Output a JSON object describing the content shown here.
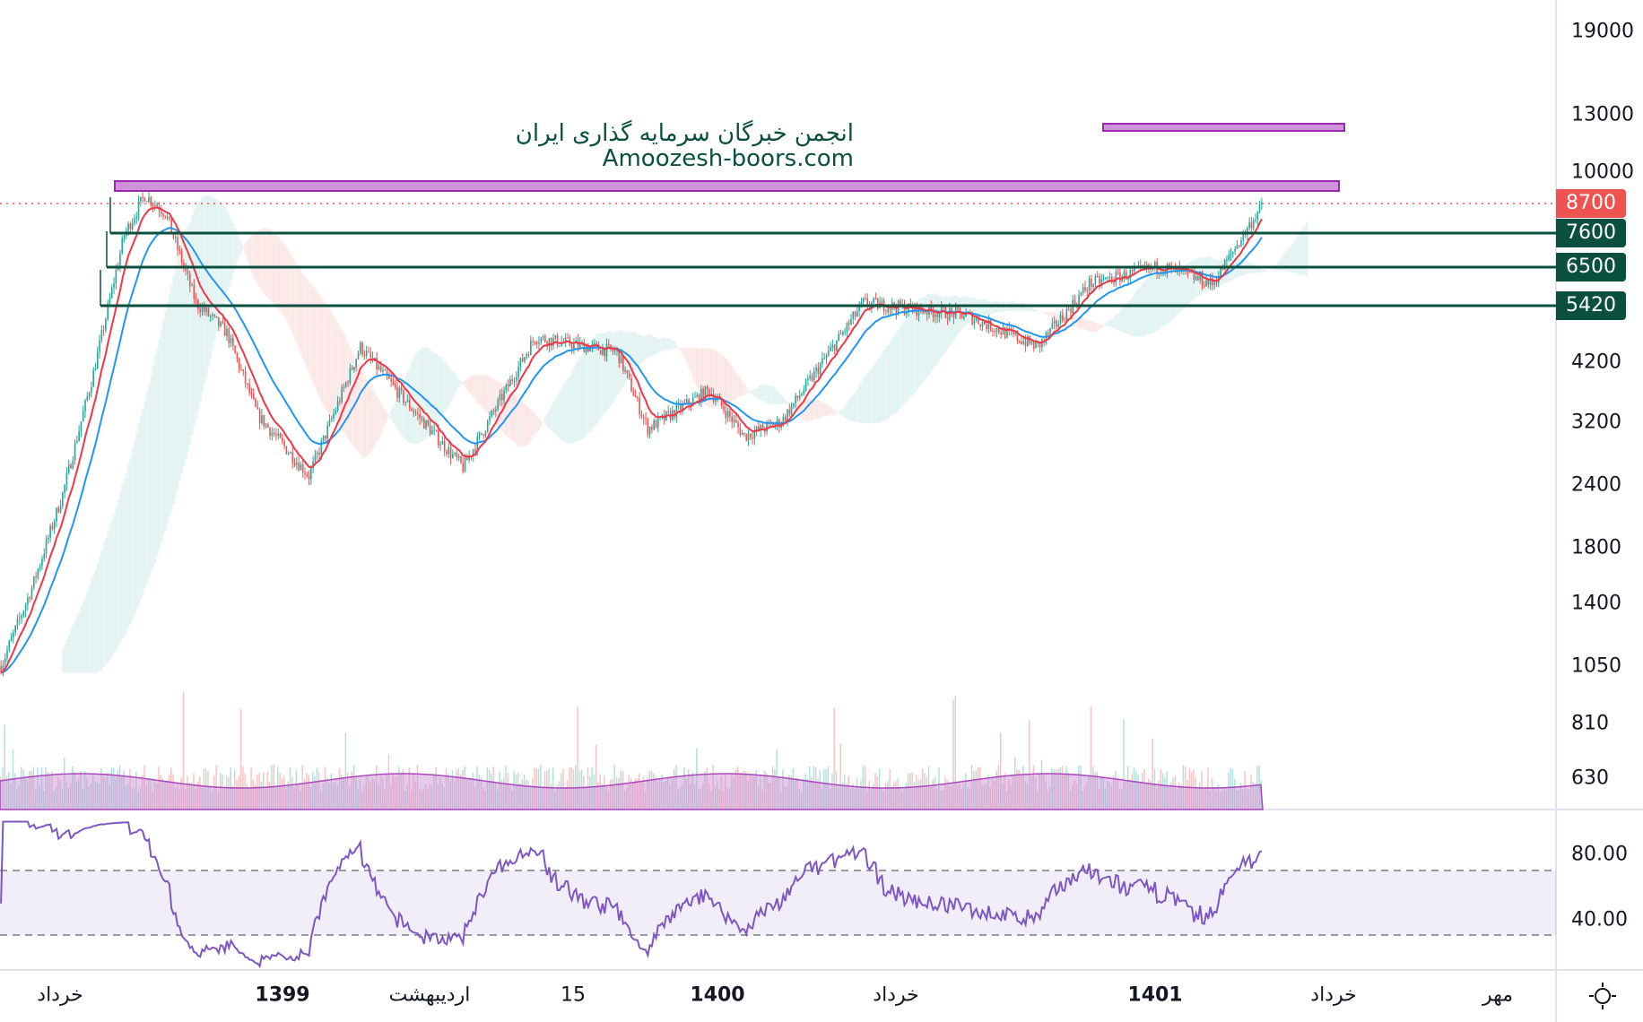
{
  "watermark": {
    "line1": "انجمن خبرگان سرمایه گذاری ایران",
    "line2": "Amoozesh-boors.com"
  },
  "price_axis": [
    "19000",
    "13000",
    "10000",
    "4200",
    "3200",
    "2400",
    "1800",
    "1400",
    "1050",
    "810",
    "630"
  ],
  "price_axis_values": [
    19000,
    13000,
    10000,
    4200,
    3200,
    2400,
    1800,
    1400,
    1050,
    810,
    630
  ],
  "rsi_axis": [
    "80.00",
    "40.00"
  ],
  "tags": [
    {
      "label": "8700",
      "value": 8700,
      "color": "#ef5350"
    },
    {
      "label": "7600",
      "value": 7600,
      "color": "#0b4f3f"
    },
    {
      "label": "6500",
      "value": 6500,
      "color": "#0b4f3f"
    },
    {
      "label": "5420",
      "value": 5420,
      "color": "#0b4f3f"
    }
  ],
  "time_axis": [
    {
      "label": "خرداد",
      "bold": false
    },
    {
      "label": "1399",
      "bold": true
    },
    {
      "label": "اردیبهشت",
      "bold": false
    },
    {
      "label": "15",
      "bold": false
    },
    {
      "label": "1400",
      "bold": true
    },
    {
      "label": "خرداد",
      "bold": false
    },
    {
      "label": "1401",
      "bold": true
    },
    {
      "label": "خرداد",
      "bold": false
    },
    {
      "label": "مهر",
      "bold": false
    }
  ],
  "colors": {
    "up": "#26a69a",
    "down": "#ef5350",
    "ma_fast": "#f23645",
    "ma_slow": "#2196f3",
    "rsi": "#7e57c2",
    "zone": "#ce93d8",
    "level": "#0b4f3f"
  },
  "chart_data": {
    "type": "candlestick",
    "scale": "log",
    "ylim": [
      600,
      21000
    ],
    "price_anchors": [
      [
        0,
        1050
      ],
      [
        15,
        1500
      ],
      [
        30,
        2300
      ],
      [
        45,
        4000
      ],
      [
        60,
        7500
      ],
      [
        70,
        9000
      ],
      [
        80,
        8300
      ],
      [
        95,
        5500
      ],
      [
        110,
        4800
      ],
      [
        125,
        3300
      ],
      [
        150,
        2500
      ],
      [
        175,
        4500
      ],
      [
        200,
        3400
      ],
      [
        225,
        2600
      ],
      [
        260,
        4700
      ],
      [
        300,
        4400
      ],
      [
        315,
        3100
      ],
      [
        345,
        3700
      ],
      [
        362,
        3000
      ],
      [
        380,
        3200
      ],
      [
        420,
        5500
      ],
      [
        470,
        5200
      ],
      [
        505,
        4500
      ],
      [
        530,
        6000
      ],
      [
        565,
        6500
      ],
      [
        590,
        6000
      ],
      [
        615,
        8700
      ]
    ],
    "candles": 615,
    "zones": [
      {
        "from": 8700,
        "to": 9300,
        "label": ""
      },
      {
        "from": 11500,
        "to": 12200,
        "label": ""
      }
    ],
    "levels": [
      7600,
      6500,
      5420
    ],
    "rsi_levels": [
      70,
      30
    ],
    "last_price": 8700
  }
}
